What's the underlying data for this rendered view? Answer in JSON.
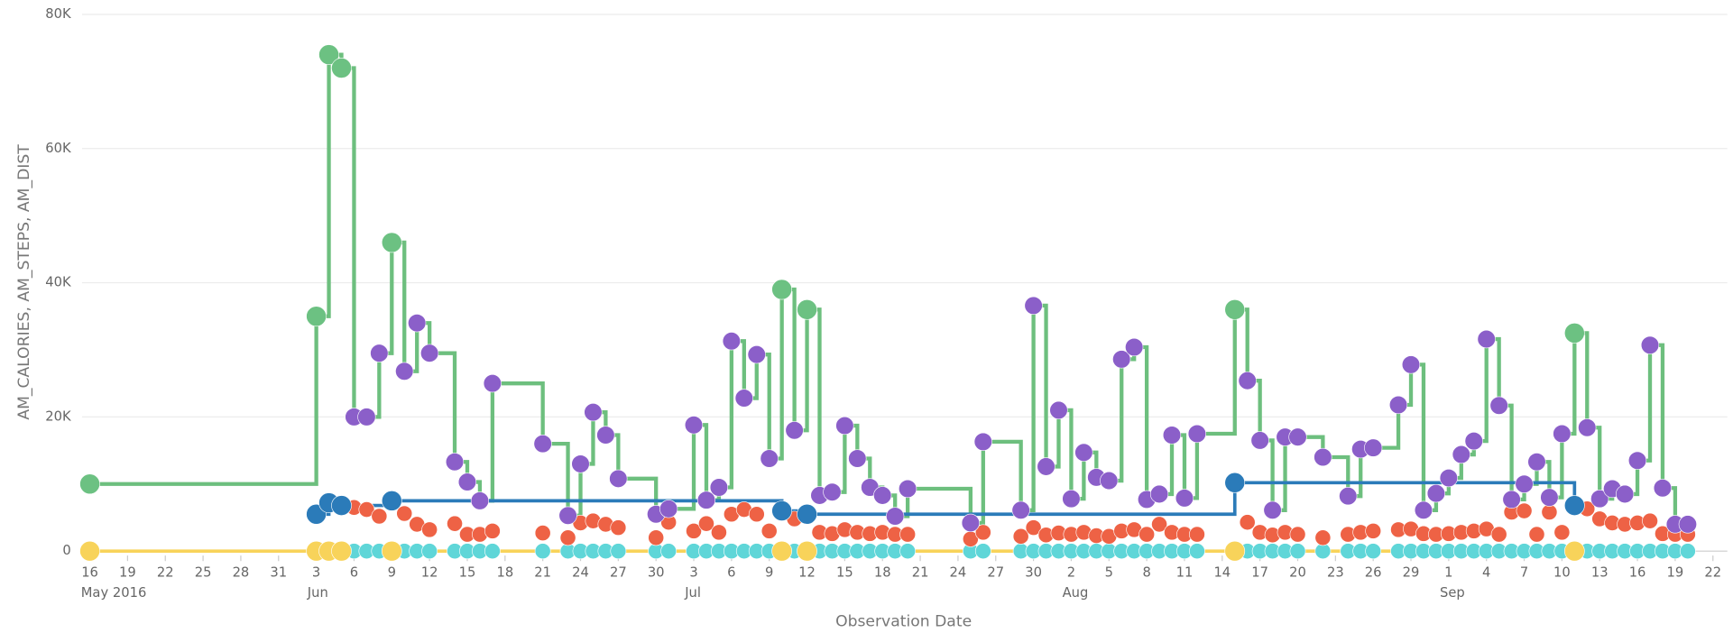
{
  "chart_data": {
    "type": "step-bubble",
    "y_label": "AM_CALORIES, AM_STEPS, AM_DIST",
    "x_label": "Observation Date",
    "xlim": [
      "2016-05-16",
      "2016-09-22"
    ],
    "ylim": [
      0,
      80000
    ],
    "yticks": [
      0,
      {
        "value": 20000,
        "label": "20K"
      },
      {
        "value": 40000,
        "label": "40K"
      },
      {
        "value": 60000,
        "label": "60K"
      },
      {
        "value": 80000,
        "label": "80K"
      }
    ],
    "grid": true,
    "xticks": [
      {
        "value": "2016-05-16",
        "label": "16"
      },
      {
        "value": "2016-05-19",
        "label": "19"
      },
      {
        "value": "2016-05-22",
        "label": "22"
      },
      {
        "value": "2016-05-25",
        "label": "25"
      },
      {
        "value": "2016-05-28",
        "label": "28"
      },
      {
        "value": "2016-05-31",
        "label": "31"
      },
      {
        "value": "2016-06-03",
        "label": "3"
      },
      {
        "value": "2016-06-06",
        "label": "6"
      },
      {
        "value": "2016-06-09",
        "label": "9"
      },
      {
        "value": "2016-06-12",
        "label": "12"
      },
      {
        "value": "2016-06-15",
        "label": "15"
      },
      {
        "value": "2016-06-18",
        "label": "18"
      },
      {
        "value": "2016-06-21",
        "label": "21"
      },
      {
        "value": "2016-06-24",
        "label": "24"
      },
      {
        "value": "2016-06-27",
        "label": "27"
      },
      {
        "value": "2016-06-30",
        "label": "30"
      },
      {
        "value": "2016-07-03",
        "label": "3"
      },
      {
        "value": "2016-07-06",
        "label": "6"
      },
      {
        "value": "2016-07-09",
        "label": "9"
      },
      {
        "value": "2016-07-12",
        "label": "12"
      },
      {
        "value": "2016-07-15",
        "label": "15"
      },
      {
        "value": "2016-07-18",
        "label": "18"
      },
      {
        "value": "2016-07-21",
        "label": "21"
      },
      {
        "value": "2016-07-24",
        "label": "24"
      },
      {
        "value": "2016-07-27",
        "label": "27"
      },
      {
        "value": "2016-07-30",
        "label": "30"
      },
      {
        "value": "2016-08-02",
        "label": "2"
      },
      {
        "value": "2016-08-05",
        "label": "5"
      },
      {
        "value": "2016-08-08",
        "label": "8"
      },
      {
        "value": "2016-08-11",
        "label": "11"
      },
      {
        "value": "2016-08-14",
        "label": "14"
      },
      {
        "value": "2016-08-17",
        "label": "17"
      },
      {
        "value": "2016-08-20",
        "label": "20"
      },
      {
        "value": "2016-08-23",
        "label": "23"
      },
      {
        "value": "2016-08-26",
        "label": "26"
      },
      {
        "value": "2016-08-29",
        "label": "29"
      },
      {
        "value": "2016-09-01",
        "label": "1"
      },
      {
        "value": "2016-09-04",
        "label": "4"
      },
      {
        "value": "2016-09-07",
        "label": "7"
      },
      {
        "value": "2016-09-10",
        "label": "10"
      },
      {
        "value": "2016-09-13",
        "label": "13"
      },
      {
        "value": "2016-09-16",
        "label": "16"
      },
      {
        "value": "2016-09-19",
        "label": "19"
      },
      {
        "value": "2016-09-22",
        "label": "22"
      }
    ],
    "month_labels": [
      {
        "value": "2016-05-16",
        "label": "May 2016"
      },
      {
        "value": "2016-06-03",
        "label": "Jun"
      },
      {
        "value": "2016-07-03",
        "label": "Jul"
      },
      {
        "value": "2016-08-02",
        "label": "Aug"
      },
      {
        "value": "2016-09-01",
        "label": "Sep"
      }
    ],
    "x": [
      "2016-05-16",
      "2016-06-03",
      "2016-06-04",
      "2016-06-05",
      "2016-06-06",
      "2016-06-07",
      "2016-06-08",
      "2016-06-09",
      "2016-06-10",
      "2016-06-11",
      "2016-06-12",
      "2016-06-14",
      "2016-06-15",
      "2016-06-16",
      "2016-06-17",
      "2016-06-21",
      "2016-06-23",
      "2016-06-24",
      "2016-06-25",
      "2016-06-26",
      "2016-06-27",
      "2016-06-30",
      "2016-07-01",
      "2016-07-03",
      "2016-07-04",
      "2016-07-05",
      "2016-07-06",
      "2016-07-07",
      "2016-07-08",
      "2016-07-09",
      "2016-07-10",
      "2016-07-11",
      "2016-07-12",
      "2016-07-13",
      "2016-07-14",
      "2016-07-15",
      "2016-07-16",
      "2016-07-17",
      "2016-07-18",
      "2016-07-19",
      "2016-07-20",
      "2016-07-25",
      "2016-07-26",
      "2016-07-29",
      "2016-07-30",
      "2016-07-31",
      "2016-08-01",
      "2016-08-02",
      "2016-08-03",
      "2016-08-04",
      "2016-08-05",
      "2016-08-06",
      "2016-08-07",
      "2016-08-08",
      "2016-08-09",
      "2016-08-10",
      "2016-08-11",
      "2016-08-12",
      "2016-08-15",
      "2016-08-16",
      "2016-08-17",
      "2016-08-18",
      "2016-08-19",
      "2016-08-20",
      "2016-08-22",
      "2016-08-24",
      "2016-08-25",
      "2016-08-26",
      "2016-08-28",
      "2016-08-29",
      "2016-08-30",
      "2016-08-31",
      "2016-09-01",
      "2016-09-02",
      "2016-09-03",
      "2016-09-04",
      "2016-09-05",
      "2016-09-06",
      "2016-09-07",
      "2016-09-08",
      "2016-09-09",
      "2016-09-10",
      "2016-09-11",
      "2016-09-12",
      "2016-09-13",
      "2016-09-14",
      "2016-09-15",
      "2016-09-16",
      "2016-09-17",
      "2016-09-18",
      "2016-09-19",
      "2016-09-20"
    ],
    "step_line": {
      "color": "#6dbf7e",
      "series": [
        0,
        1
      ]
    },
    "series": [
      {
        "color": "#6cc182",
        "radius": 9,
        "values": [
          10000,
          35000,
          74000,
          72000,
          null,
          null,
          null,
          46000,
          null,
          null,
          null,
          null,
          null,
          null,
          null,
          null,
          null,
          null,
          null,
          null,
          null,
          null,
          null,
          null,
          null,
          null,
          null,
          null,
          null,
          null,
          39000,
          null,
          36000,
          null,
          null,
          null,
          null,
          null,
          null,
          null,
          null,
          null,
          null,
          null,
          null,
          null,
          null,
          null,
          null,
          null,
          null,
          null,
          null,
          null,
          null,
          null,
          null,
          null,
          36000,
          null,
          null,
          null,
          null,
          null,
          null,
          null,
          null,
          null,
          null,
          null,
          null,
          null,
          null,
          null,
          null,
          null,
          null,
          null,
          null,
          null,
          null,
          null,
          32500,
          null,
          null,
          null,
          null,
          null,
          null,
          null,
          null,
          null
        ]
      },
      {
        "color": "#8b5fc9",
        "radius": 8,
        "values": [
          null,
          null,
          null,
          null,
          20000,
          20000,
          29500,
          null,
          26800,
          34000,
          29500,
          13300,
          10300,
          7500,
          25000,
          16000,
          5300,
          13000,
          20700,
          17300,
          10800,
          5500,
          6300,
          18800,
          7600,
          9500,
          31300,
          22800,
          29300,
          13800,
          null,
          18000,
          null,
          8300,
          8800,
          18700,
          13800,
          9500,
          8300,
          5200,
          9300,
          4200,
          16300,
          6100,
          36600,
          12600,
          21000,
          7800,
          14700,
          11000,
          10500,
          28600,
          30400,
          7700,
          8500,
          17300,
          7900,
          17500,
          null,
          25400,
          16500,
          6100,
          17000,
          17000,
          14000,
          8200,
          15200,
          15400,
          21800,
          27800,
          6100,
          8600,
          10900,
          14400,
          16400,
          31600,
          21700,
          7700,
          10000,
          13300,
          8000,
          17500,
          null,
          18400,
          7800,
          9300,
          8500,
          13500,
          30700,
          9400,
          4000,
          4000
        ]
      },
      {
        "color": "#2b7bb9",
        "radius": 9,
        "line": true,
        "values": [
          null,
          5500,
          7200,
          6800,
          null,
          null,
          null,
          7500,
          null,
          null,
          null,
          null,
          null,
          null,
          null,
          null,
          null,
          null,
          null,
          null,
          null,
          null,
          null,
          null,
          null,
          null,
          null,
          null,
          null,
          null,
          6000,
          null,
          5500,
          null,
          null,
          null,
          null,
          null,
          null,
          null,
          null,
          null,
          null,
          null,
          null,
          null,
          null,
          null,
          null,
          null,
          null,
          null,
          null,
          null,
          null,
          null,
          null,
          null,
          10200,
          null,
          null,
          null,
          null,
          null,
          null,
          null,
          null,
          null,
          null,
          null,
          null,
          null,
          null,
          null,
          null,
          null,
          null,
          null,
          null,
          null,
          null,
          null,
          6800,
          null,
          null,
          null,
          null,
          null,
          null,
          null,
          null,
          null
        ]
      },
      {
        "color": "#ee6245",
        "radius": 7,
        "values": [
          null,
          null,
          null,
          null,
          6500,
          6200,
          5200,
          null,
          5600,
          4000,
          3200,
          4100,
          2500,
          2500,
          3000,
          2700,
          2000,
          4200,
          4500,
          4000,
          3500,
          2000,
          4300,
          3000,
          4100,
          2800,
          5500,
          6200,
          5500,
          3000,
          null,
          4800,
          null,
          2800,
          2600,
          3200,
          2800,
          2600,
          2800,
          2500,
          2500,
          1800,
          2800,
          2200,
          3500,
          2400,
          2700,
          2500,
          2800,
          2300,
          2200,
          3000,
          3200,
          2500,
          4000,
          2800,
          2500,
          2500,
          null,
          4300,
          2800,
          2400,
          2800,
          2500,
          2000,
          2500,
          2800,
          3000,
          3200,
          3300,
          2600,
          2500,
          2600,
          2800,
          3000,
          3300,
          2500,
          5800,
          6000,
          2500,
          5800,
          2800,
          null,
          6300,
          4800,
          4200,
          4000,
          4200,
          4500,
          2600,
          2500,
          2500
        ]
      },
      {
        "color": "#5fd6d8",
        "radius": 7,
        "values": [
          null,
          null,
          null,
          null,
          0,
          0,
          0,
          null,
          0,
          0,
          0,
          0,
          0,
          0,
          0,
          0,
          0,
          0,
          0,
          0,
          0,
          0,
          0,
          0,
          0,
          0,
          0,
          0,
          0,
          0,
          null,
          0,
          null,
          0,
          0,
          0,
          0,
          0,
          0,
          0,
          0,
          0,
          0,
          0,
          0,
          0,
          0,
          0,
          0,
          0,
          0,
          0,
          0,
          0,
          0,
          0,
          0,
          0,
          null,
          0,
          0,
          0,
          0,
          0,
          0,
          0,
          0,
          0,
          0,
          0,
          0,
          0,
          0,
          0,
          0,
          0,
          0,
          0,
          0,
          0,
          0,
          0,
          null,
          0,
          0,
          0,
          0,
          0,
          0,
          0,
          0,
          0
        ]
      },
      {
        "color": "#f8d35a",
        "radius": 9,
        "line": true,
        "values": [
          0,
          0,
          0,
          0,
          null,
          null,
          null,
          0,
          null,
          null,
          null,
          null,
          null,
          null,
          null,
          null,
          null,
          null,
          null,
          null,
          null,
          null,
          null,
          null,
          null,
          null,
          null,
          null,
          null,
          null,
          0,
          null,
          0,
          null,
          null,
          null,
          null,
          null,
          null,
          null,
          null,
          null,
          null,
          null,
          null,
          null,
          null,
          null,
          null,
          null,
          null,
          null,
          null,
          null,
          null,
          null,
          null,
          null,
          0,
          null,
          null,
          null,
          null,
          null,
          null,
          null,
          null,
          null,
          null,
          null,
          null,
          null,
          null,
          null,
          null,
          null,
          null,
          null,
          null,
          null,
          null,
          null,
          0,
          null,
          null,
          null,
          null,
          null,
          null,
          null,
          null,
          null
        ]
      }
    ]
  }
}
